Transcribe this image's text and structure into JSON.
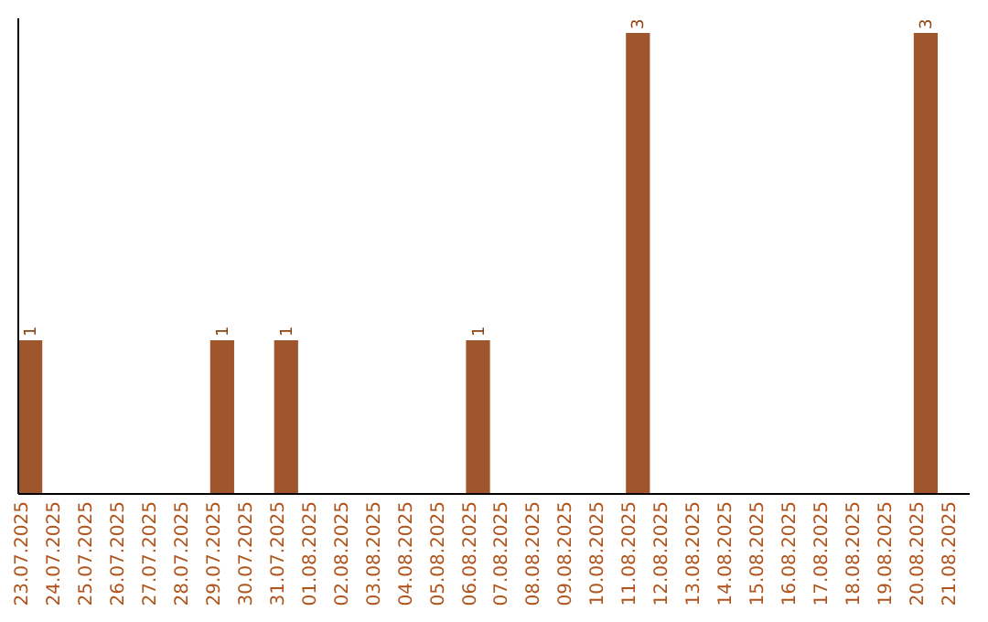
{
  "chart_data": {
    "type": "bar",
    "categories": [
      "23.07.2025",
      "24.07.2025",
      "25.07.2025",
      "26.07.2025",
      "27.07.2025",
      "28.07.2025",
      "29.07.2025",
      "30.07.2025",
      "31.07.2025",
      "01.08.2025",
      "02.08.2025",
      "03.08.2025",
      "04.08.2025",
      "05.08.2025",
      "06.08.2025",
      "07.08.2025",
      "08.08.2025",
      "09.08.2025",
      "10.08.2025",
      "11.08.2025",
      "12.08.2025",
      "13.08.2025",
      "14.08.2025",
      "15.08.2025",
      "16.08.2025",
      "17.08.2025",
      "18.08.2025",
      "19.08.2025",
      "20.08.2025",
      "21.08.2025"
    ],
    "values": [
      1,
      0,
      0,
      0,
      0,
      0,
      1,
      0,
      1,
      0,
      0,
      0,
      0,
      0,
      1,
      0,
      0,
      0,
      0,
      3,
      0,
      0,
      0,
      0,
      0,
      0,
      0,
      0,
      3,
      0
    ],
    "value_labels": [
      "1",
      null,
      null,
      null,
      null,
      null,
      "1",
      null,
      "1",
      null,
      null,
      null,
      null,
      null,
      "1",
      null,
      null,
      null,
      null,
      "3",
      null,
      null,
      null,
      null,
      null,
      null,
      null,
      null,
      "3",
      null
    ],
    "color": "#a0562c",
    "ylim": [
      0,
      3
    ],
    "tick_labels": "x"
  }
}
